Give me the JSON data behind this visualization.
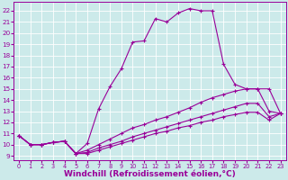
{
  "background_color": "#cceaea",
  "line_color": "#990099",
  "grid_color": "#ffffff",
  "xlabel": "Windchill (Refroidissement éolien,°C)",
  "xlabel_fontsize": 6.5,
  "xticks": [
    0,
    1,
    2,
    3,
    4,
    5,
    6,
    7,
    8,
    9,
    10,
    11,
    12,
    13,
    14,
    15,
    16,
    17,
    18,
    19,
    20,
    21,
    22,
    23
  ],
  "yticks": [
    9,
    10,
    11,
    12,
    13,
    14,
    15,
    16,
    17,
    18,
    19,
    20,
    21,
    22
  ],
  "ylim": [
    8.6,
    22.8
  ],
  "xlim": [
    -0.5,
    23.5
  ],
  "lines": [
    {
      "x": [
        0,
        1,
        2,
        3,
        4,
        5,
        6,
        7,
        8,
        9,
        10,
        11,
        12,
        13,
        14,
        15,
        16,
        17,
        18,
        19,
        20,
        21,
        22,
        23
      ],
      "y": [
        10.8,
        10.0,
        10.0,
        10.2,
        10.3,
        9.2,
        10.1,
        13.2,
        15.2,
        16.8,
        19.2,
        19.3,
        21.3,
        21.0,
        21.8,
        22.2,
        22.0,
        22.0,
        17.2,
        15.4,
        15.0,
        15.0,
        13.0,
        12.8
      ]
    },
    {
      "x": [
        0,
        1,
        2,
        3,
        4,
        5,
        6,
        7,
        8,
        9,
        10,
        11,
        12,
        13,
        14,
        15,
        16,
        17,
        18,
        19,
        20,
        21,
        22,
        23
      ],
      "y": [
        10.8,
        10.0,
        10.0,
        10.2,
        10.3,
        9.2,
        9.5,
        10.0,
        10.5,
        11.0,
        11.5,
        11.8,
        12.2,
        12.5,
        12.9,
        13.3,
        13.8,
        14.2,
        14.5,
        14.8,
        15.0,
        15.0,
        15.0,
        12.8
      ]
    },
    {
      "x": [
        0,
        1,
        2,
        3,
        4,
        5,
        6,
        7,
        8,
        9,
        10,
        11,
        12,
        13,
        14,
        15,
        16,
        17,
        18,
        19,
        20,
        21,
        22,
        23
      ],
      "y": [
        10.8,
        10.0,
        10.0,
        10.2,
        10.3,
        9.2,
        9.3,
        9.7,
        10.0,
        10.3,
        10.7,
        11.0,
        11.3,
        11.6,
        11.9,
        12.2,
        12.5,
        12.8,
        13.1,
        13.4,
        13.7,
        13.7,
        12.5,
        12.8
      ]
    },
    {
      "x": [
        0,
        1,
        2,
        3,
        4,
        5,
        6,
        7,
        8,
        9,
        10,
        11,
        12,
        13,
        14,
        15,
        16,
        17,
        18,
        19,
        20,
        21,
        22,
        23
      ],
      "y": [
        10.8,
        10.0,
        10.0,
        10.2,
        10.3,
        9.2,
        9.2,
        9.5,
        9.8,
        10.1,
        10.4,
        10.7,
        11.0,
        11.2,
        11.5,
        11.7,
        12.0,
        12.2,
        12.5,
        12.7,
        12.9,
        12.9,
        12.2,
        12.8
      ]
    }
  ]
}
